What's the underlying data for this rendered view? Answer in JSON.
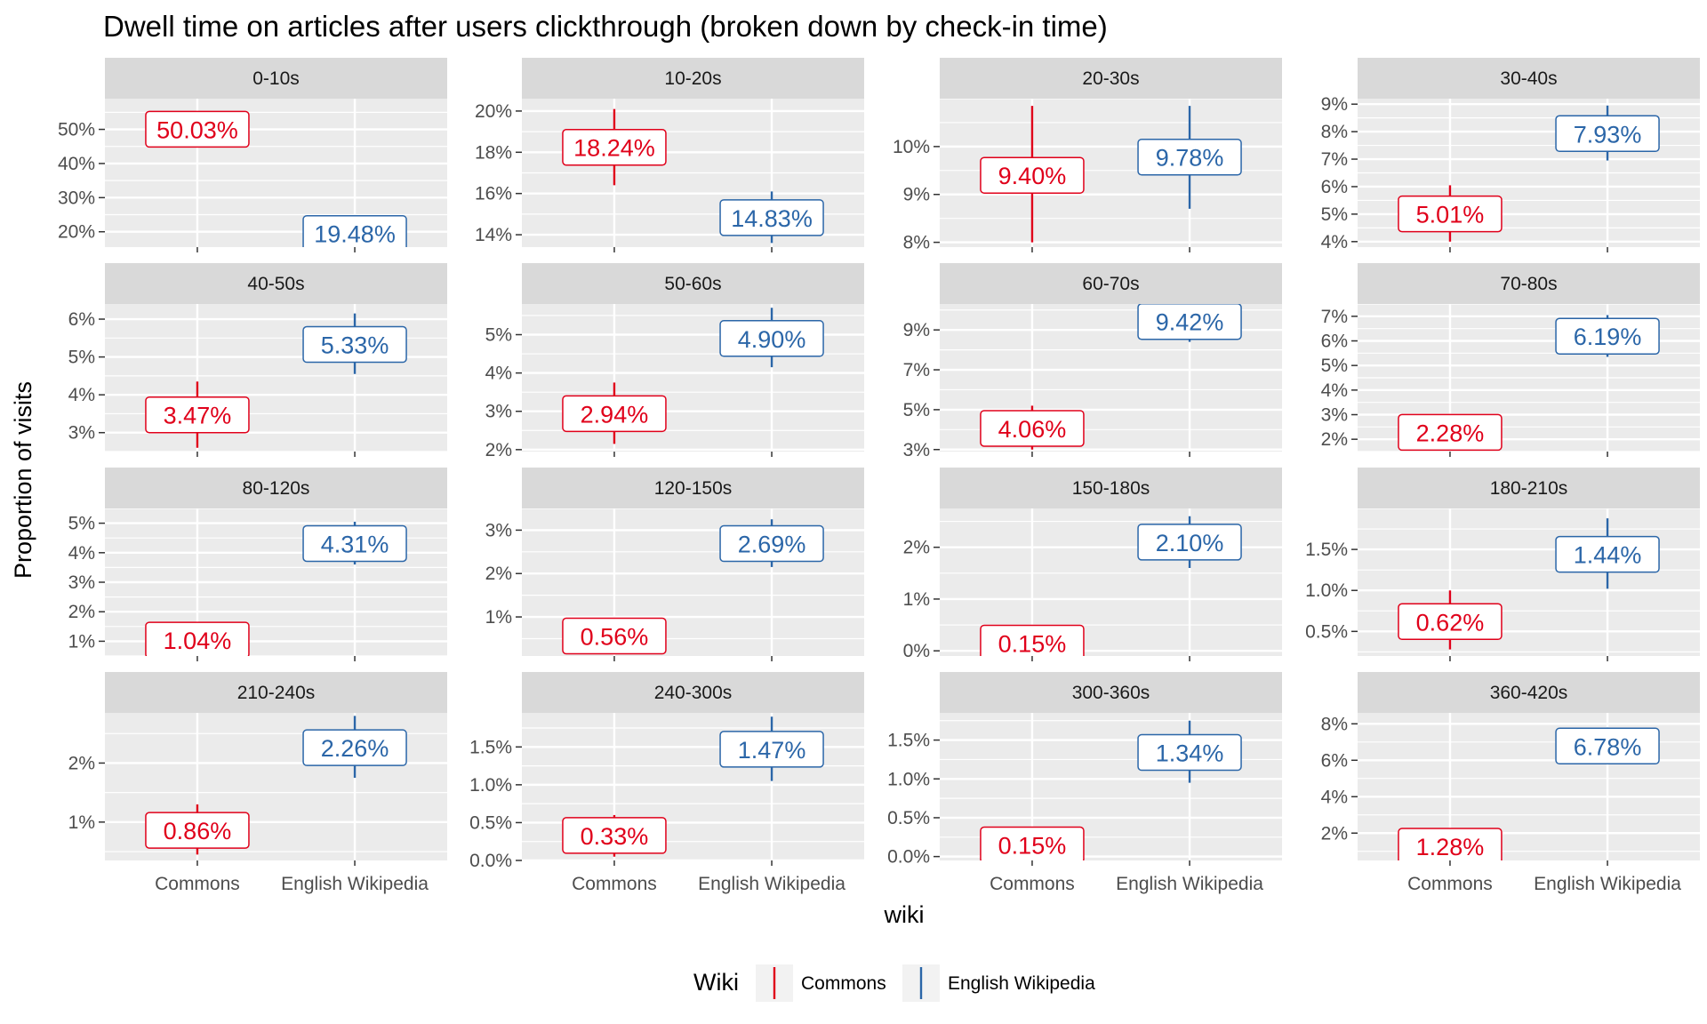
{
  "chart_data": {
    "type": "pointrange-facet",
    "title": "Dwell time on articles after users clickthrough (broken down by check-in time)",
    "xlabel": "wiki",
    "ylabel": "Proportion of visits",
    "categories": [
      "Commons",
      "English Wikipedia"
    ],
    "legend": {
      "title": "Wiki",
      "position": "bottom",
      "entries": [
        {
          "name": "Commons",
          "color": "#E0001A"
        },
        {
          "name": "English Wikipedia",
          "color": "#2B66A8"
        }
      ]
    },
    "colors": {
      "Commons": "#E0001A",
      "English Wikipedia": "#2B66A8"
    },
    "grid": true,
    "facets": [
      {
        "label": "0-10s",
        "ylim": [
          15.5,
          59
        ],
        "ticks": [
          20,
          30,
          40,
          50
        ],
        "tick_labels": [
          "20%",
          "30%",
          "40%",
          "50%"
        ],
        "series": [
          {
            "name": "Commons",
            "value": 50.03,
            "lo": 45,
            "hi": 55,
            "label": "50.03%"
          },
          {
            "name": "English Wikipedia",
            "value": 19.48,
            "lo": 15,
            "hi": 24,
            "label": "19.48%"
          }
        ]
      },
      {
        "label": "10-20s",
        "ylim": [
          13.4,
          20.6
        ],
        "ticks": [
          14,
          16,
          18,
          20
        ],
        "tick_labels": [
          "14%",
          "16%",
          "18%",
          "20%"
        ],
        "series": [
          {
            "name": "Commons",
            "value": 18.24,
            "lo": 16.4,
            "hi": 20.1,
            "label": "18.24%"
          },
          {
            "name": "English Wikipedia",
            "value": 14.83,
            "lo": 13.6,
            "hi": 16.1,
            "label": "14.83%"
          }
        ]
      },
      {
        "label": "20-30s",
        "ylim": [
          7.9,
          11.0
        ],
        "ticks": [
          8,
          9,
          10
        ],
        "tick_labels": [
          "8%",
          "9%",
          "10%"
        ],
        "series": [
          {
            "name": "Commons",
            "value": 9.4,
            "lo": 8.0,
            "hi": 10.85,
            "label": "9.40%"
          },
          {
            "name": "English Wikipedia",
            "value": 9.78,
            "lo": 8.7,
            "hi": 10.85,
            "label": "9.78%"
          }
        ]
      },
      {
        "label": "30-40s",
        "ylim": [
          3.8,
          9.2
        ],
        "ticks": [
          4,
          5,
          6,
          7,
          8,
          9
        ],
        "tick_labels": [
          "4%",
          "5%",
          "6%",
          "7%",
          "8%",
          "9%"
        ],
        "series": [
          {
            "name": "Commons",
            "value": 5.01,
            "lo": 4.0,
            "hi": 6.05,
            "label": "5.01%"
          },
          {
            "name": "English Wikipedia",
            "value": 7.93,
            "lo": 6.95,
            "hi": 8.95,
            "label": "7.93%"
          }
        ]
      },
      {
        "label": "40-50s",
        "ylim": [
          2.5,
          6.4
        ],
        "ticks": [
          3,
          4,
          5,
          6
        ],
        "tick_labels": [
          "3%",
          "4%",
          "5%",
          "6%"
        ],
        "series": [
          {
            "name": "Commons",
            "value": 3.47,
            "lo": 2.6,
            "hi": 4.35,
            "label": "3.47%"
          },
          {
            "name": "English Wikipedia",
            "value": 5.33,
            "lo": 4.55,
            "hi": 6.15,
            "label": "5.33%"
          }
        ]
      },
      {
        "label": "50-60s",
        "ylim": [
          1.95,
          5.8
        ],
        "ticks": [
          2,
          3,
          4,
          5
        ],
        "tick_labels": [
          "2%",
          "3%",
          "4%",
          "5%"
        ],
        "series": [
          {
            "name": "Commons",
            "value": 2.94,
            "lo": 2.15,
            "hi": 3.75,
            "label": "2.94%"
          },
          {
            "name": "English Wikipedia",
            "value": 4.9,
            "lo": 4.15,
            "hi": 5.7,
            "label": "4.90%"
          }
        ]
      },
      {
        "label": "60-70s",
        "ylim": [
          2.9,
          10.3
        ],
        "ticks": [
          3,
          5,
          7,
          9
        ],
        "tick_labels": [
          "3%",
          "5%",
          "7%",
          "9%"
        ],
        "series": [
          {
            "name": "Commons",
            "value": 4.06,
            "lo": 3.0,
            "hi": 5.2,
            "label": "4.06%"
          },
          {
            "name": "English Wikipedia",
            "value": 9.42,
            "lo": 8.4,
            "hi": 10.2,
            "label": "9.42%"
          }
        ]
      },
      {
        "label": "70-80s",
        "ylim": [
          1.5,
          7.5
        ],
        "ticks": [
          2,
          3,
          4,
          5,
          6,
          7
        ],
        "tick_labels": [
          "2%",
          "3%",
          "4%",
          "5%",
          "6%",
          "7%"
        ],
        "series": [
          {
            "name": "Commons",
            "value": 2.28,
            "lo": 1.6,
            "hi": 3.0,
            "label": "2.28%"
          },
          {
            "name": "English Wikipedia",
            "value": 6.19,
            "lo": 5.35,
            "hi": 7.05,
            "label": "6.19%"
          }
        ]
      },
      {
        "label": "80-120s",
        "ylim": [
          0.5,
          5.5
        ],
        "ticks": [
          1,
          2,
          3,
          4,
          5
        ],
        "tick_labels": [
          "1%",
          "2%",
          "3%",
          "4%",
          "5%"
        ],
        "series": [
          {
            "name": "Commons",
            "value": 1.04,
            "lo": 0.6,
            "hi": 1.5,
            "label": "1.04%"
          },
          {
            "name": "English Wikipedia",
            "value": 4.31,
            "lo": 3.6,
            "hi": 5.05,
            "label": "4.31%"
          }
        ]
      },
      {
        "label": "120-150s",
        "ylim": [
          0.1,
          3.5
        ],
        "ticks": [
          1,
          2,
          3
        ],
        "tick_labels": [
          "1%",
          "2%",
          "3%"
        ],
        "series": [
          {
            "name": "Commons",
            "value": 0.56,
            "lo": 0.2,
            "hi": 0.95,
            "label": "0.56%"
          },
          {
            "name": "English Wikipedia",
            "value": 2.69,
            "lo": 2.15,
            "hi": 3.25,
            "label": "2.69%"
          }
        ]
      },
      {
        "label": "150-180s",
        "ylim": [
          -0.1,
          2.75
        ],
        "ticks": [
          0,
          1,
          2
        ],
        "tick_labels": [
          "0%",
          "1%",
          "2%"
        ],
        "series": [
          {
            "name": "Commons",
            "value": 0.15,
            "lo": -0.05,
            "hi": 0.4,
            "label": "0.15%"
          },
          {
            "name": "English Wikipedia",
            "value": 2.1,
            "lo": 1.6,
            "hi": 2.6,
            "label": "2.10%"
          }
        ]
      },
      {
        "label": "180-210s",
        "ylim": [
          0.2,
          2.0
        ],
        "ticks": [
          0.5,
          1.0,
          1.5
        ],
        "tick_labels": [
          "0.5%",
          "1.0%",
          "1.5%"
        ],
        "series": [
          {
            "name": "Commons",
            "value": 0.62,
            "lo": 0.28,
            "hi": 1.0,
            "label": "0.62%"
          },
          {
            "name": "English Wikipedia",
            "value": 1.44,
            "lo": 1.02,
            "hi": 1.88,
            "label": "1.44%"
          }
        ]
      },
      {
        "label": "210-240s",
        "ylim": [
          0.35,
          2.85
        ],
        "ticks": [
          1,
          2
        ],
        "tick_labels": [
          "1%",
          "2%"
        ],
        "series": [
          {
            "name": "Commons",
            "value": 0.86,
            "lo": 0.45,
            "hi": 1.3,
            "label": "0.86%"
          },
          {
            "name": "English Wikipedia",
            "value": 2.26,
            "lo": 1.75,
            "hi": 2.8,
            "label": "2.26%"
          }
        ]
      },
      {
        "label": "240-300s",
        "ylim": [
          0.0,
          1.95
        ],
        "ticks": [
          0.0,
          0.5,
          1.0,
          1.5
        ],
        "tick_labels": [
          "0.0%",
          "0.5%",
          "1.0%",
          "1.5%"
        ],
        "series": [
          {
            "name": "Commons",
            "value": 0.33,
            "lo": 0.05,
            "hi": 0.6,
            "label": "0.33%"
          },
          {
            "name": "English Wikipedia",
            "value": 1.47,
            "lo": 1.05,
            "hi": 1.9,
            "label": "1.47%"
          }
        ]
      },
      {
        "label": "300-360s",
        "ylim": [
          -0.05,
          1.85
        ],
        "ticks": [
          0.0,
          0.5,
          1.0,
          1.5
        ],
        "tick_labels": [
          "0.0%",
          "0.5%",
          "1.0%",
          "1.5%"
        ],
        "series": [
          {
            "name": "Commons",
            "value": 0.15,
            "lo": -0.02,
            "hi": 0.35,
            "label": "0.15%"
          },
          {
            "name": "English Wikipedia",
            "value": 1.34,
            "lo": 0.95,
            "hi": 1.75,
            "label": "1.34%"
          }
        ]
      },
      {
        "label": "360-420s",
        "ylim": [
          0.5,
          8.6
        ],
        "ticks": [
          2,
          4,
          6,
          8
        ],
        "tick_labels": [
          "2%",
          "4%",
          "6%",
          "8%"
        ],
        "series": [
          {
            "name": "Commons",
            "value": 1.28,
            "lo": 0.6,
            "hi": 2.0,
            "label": "1.28%"
          },
          {
            "name": "English Wikipedia",
            "value": 6.78,
            "lo": 5.8,
            "hi": 7.8,
            "label": "6.78%"
          }
        ]
      }
    ]
  }
}
